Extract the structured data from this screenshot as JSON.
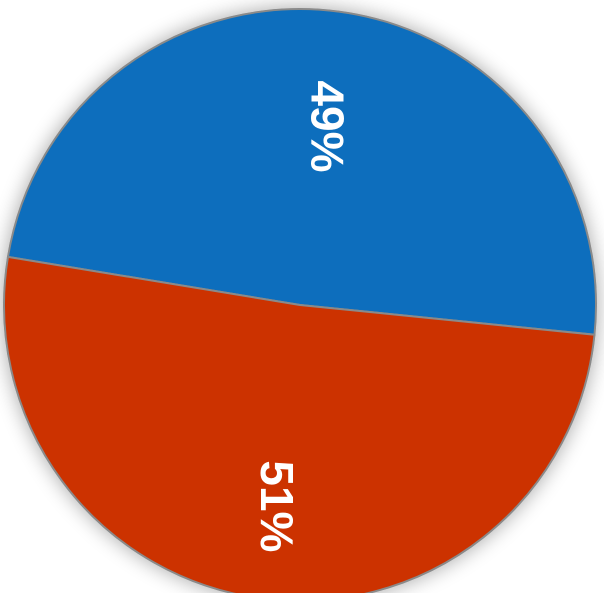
{
  "chart_data": {
    "type": "pie",
    "title": "",
    "slices": [
      {
        "value": 49,
        "label": "49%",
        "color": "#0a6ebd"
      },
      {
        "value": 51,
        "label": "51%",
        "color": "#cc3300"
      }
    ],
    "separator_color": "#8a8a8a",
    "legend": "none"
  }
}
